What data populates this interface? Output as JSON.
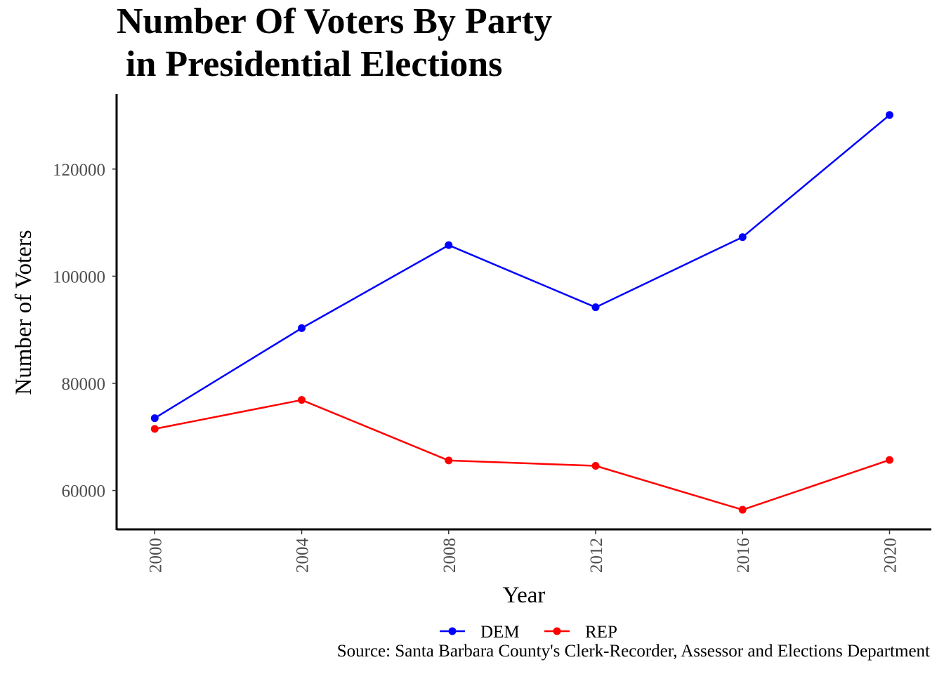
{
  "chart_data": {
    "type": "line",
    "title_line1": "Number Of Voters By Party",
    "title_line2": " in Presidential Elections",
    "xlabel": "Year",
    "ylabel": "Number of Voters",
    "caption": "Source: Santa Barbara County's Clerk-Recorder, Assessor and Elections Department",
    "x": [
      2000,
      2004,
      2008,
      2012,
      2016,
      2020
    ],
    "x_tick_labels": [
      "2000",
      "2004",
      "2008",
      "2012",
      "2016",
      "2020"
    ],
    "y_ticks": [
      60000,
      80000,
      100000,
      120000
    ],
    "y_tick_labels": [
      "60000",
      "80000",
      "100000",
      "120000"
    ],
    "xlim": [
      1999,
      2021.1
    ],
    "ylim": [
      53000,
      134000
    ],
    "grid": false,
    "legend_position": "bottom",
    "series": [
      {
        "name": "DEM",
        "color": "#0000ff",
        "values": [
          73500,
          90300,
          105800,
          94200,
          107300,
          130100
        ]
      },
      {
        "name": "REP",
        "color": "#ff0000",
        "values": [
          71500,
          76900,
          65600,
          64600,
          56400,
          65700
        ]
      }
    ]
  }
}
